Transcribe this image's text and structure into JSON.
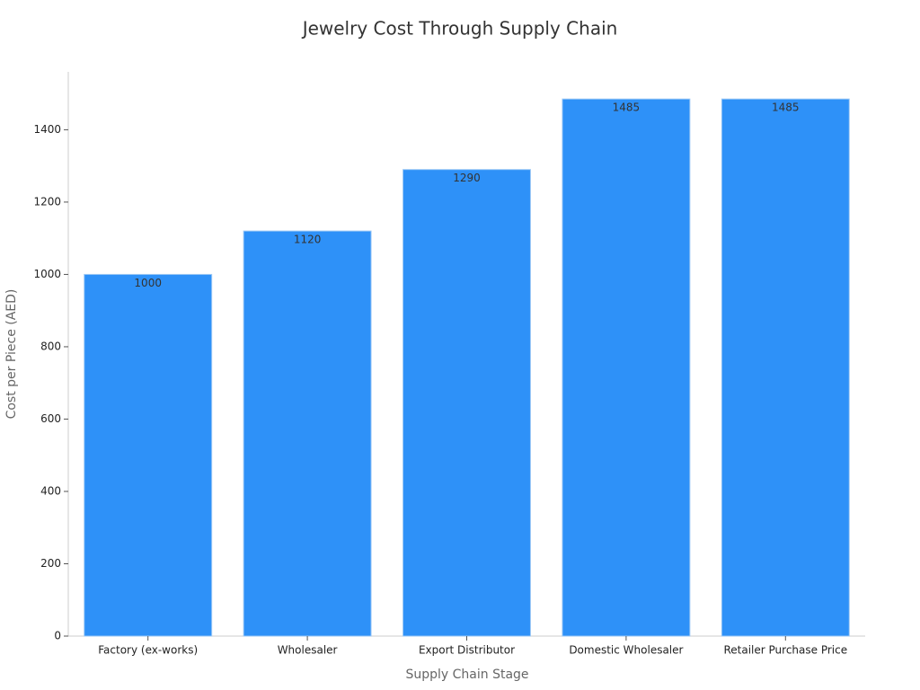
{
  "chart_data": {
    "type": "bar",
    "title": "Jewelry Cost Through Supply Chain",
    "x_label": "Supply Chain Stage",
    "y_label": "Cost per Piece (AED)",
    "categories": [
      "Factory (ex-works)",
      "Wholesaler",
      "Export Distributor",
      "Domestic Wholesaler",
      "Retailer Purchase Price"
    ],
    "values": [
      1000,
      1120,
      1290,
      1485,
      1485
    ],
    "color": "#2e91f8",
    "ylim": [
      0,
      1560
    ],
    "yticks": [
      0,
      200,
      400,
      600,
      800,
      1000,
      1200,
      1400
    ],
    "grid": false
  }
}
